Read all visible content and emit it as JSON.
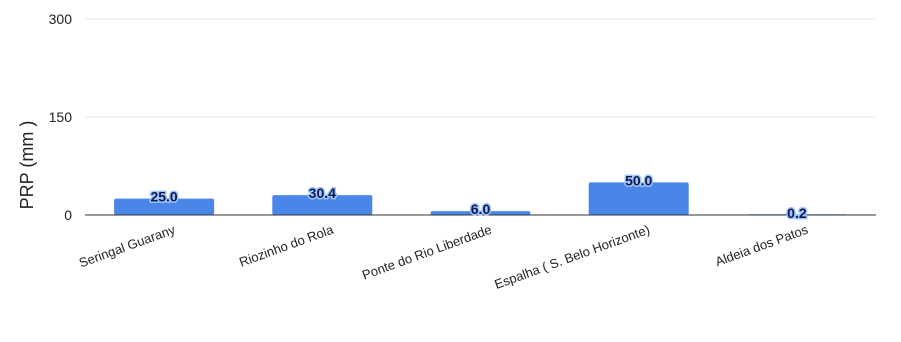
{
  "chart_data": {
    "type": "bar",
    "categories": [
      "Seringal Guarany",
      "Riozinho do Rola",
      "Ponte do Rio Liberdade",
      "Espalha ( S. Belo Horizonte)",
      "Aldeia dos Patos"
    ],
    "values": [
      25.0,
      30.4,
      6.0,
      50.0,
      0.2
    ],
    "data_labels": [
      "25.0",
      "30.4",
      "6.0",
      "50.0",
      "0.2"
    ],
    "ylabel": "PRP (mm )",
    "xlabel": "",
    "ylim": [
      0,
      300
    ],
    "yticks": [
      "0",
      "150",
      "300"
    ],
    "grid": true,
    "legend": "none",
    "bar_color": "#4a86e8"
  }
}
